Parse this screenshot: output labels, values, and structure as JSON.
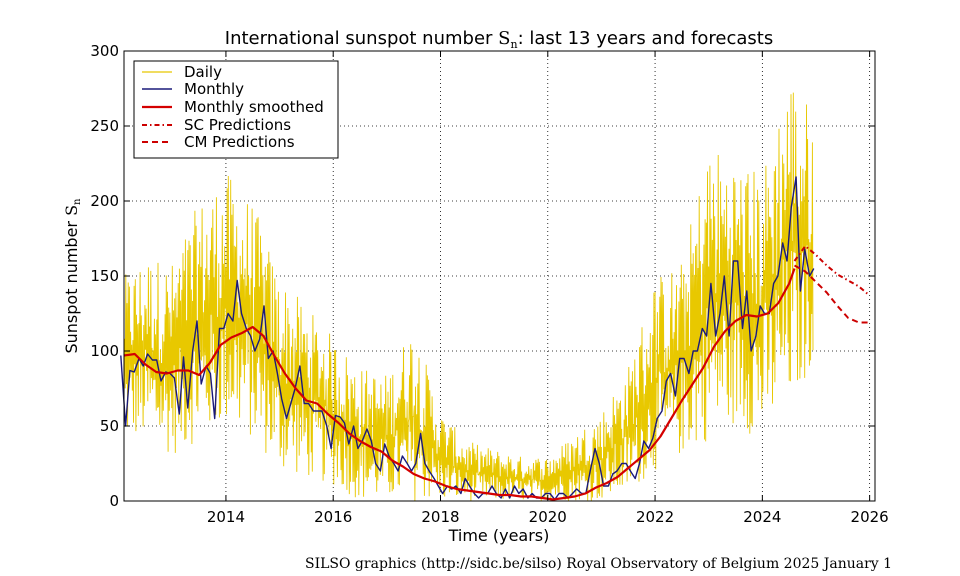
{
  "chart_data": {
    "type": "line",
    "title_parts": [
      "International sunspot number ",
      "S",
      "n",
      ": last 13 years and forecasts"
    ],
    "xlabel": "Time (years)",
    "ylabel_parts": [
      "Sunspot number ",
      "S",
      "n"
    ],
    "xlim": [
      2012.1,
      2026.1
    ],
    "ylim": [
      0,
      300
    ],
    "x_ticks": [
      2014,
      2016,
      2018,
      2020,
      2022,
      2024,
      2026
    ],
    "y_ticks": [
      0,
      50,
      100,
      150,
      200,
      250,
      300
    ],
    "grid": true,
    "legend_position": "top-left",
    "colors": {
      "daily": "#e8c800",
      "monthly": "#1a1a7a",
      "smoothed": "#d40000",
      "predictions": "#cc0000"
    },
    "series": [
      {
        "name": "Daily",
        "style": "thin-yellow",
        "band": [
          [
            2012.1,
            40,
            150
          ],
          [
            2012.5,
            40,
            165
          ],
          [
            2013.0,
            30,
            160
          ],
          [
            2013.5,
            40,
            200
          ],
          [
            2014.0,
            50,
            220
          ],
          [
            2014.5,
            40,
            200
          ],
          [
            2015.0,
            20,
            150
          ],
          [
            2015.5,
            15,
            130
          ],
          [
            2016.0,
            10,
            110
          ],
          [
            2016.5,
            0,
            90
          ],
          [
            2017.0,
            0,
            85
          ],
          [
            2017.5,
            0,
            120
          ],
          [
            2018.0,
            0,
            60
          ],
          [
            2018.5,
            0,
            40
          ],
          [
            2019.0,
            0,
            35
          ],
          [
            2019.5,
            0,
            30
          ],
          [
            2020.0,
            0,
            30
          ],
          [
            2020.5,
            0,
            45
          ],
          [
            2021.0,
            0,
            60
          ],
          [
            2021.5,
            5,
            90
          ],
          [
            2022.0,
            20,
            150
          ],
          [
            2022.5,
            30,
            160
          ],
          [
            2023.0,
            40,
            240
          ],
          [
            2023.5,
            50,
            230
          ],
          [
            2024.0,
            40,
            220
          ],
          [
            2024.5,
            60,
            290
          ],
          [
            2024.95,
            90,
            260
          ]
        ]
      },
      {
        "name": "Monthly",
        "style": "navy-line",
        "x": [
          2012.04,
          2012.13,
          2012.21,
          2012.29,
          2012.38,
          2012.46,
          2012.54,
          2012.63,
          2012.71,
          2012.79,
          2012.88,
          2012.96,
          2013.04,
          2013.13,
          2013.21,
          2013.29,
          2013.38,
          2013.46,
          2013.54,
          2013.63,
          2013.71,
          2013.79,
          2013.88,
          2013.96,
          2014.04,
          2014.13,
          2014.21,
          2014.29,
          2014.38,
          2014.46,
          2014.54,
          2014.63,
          2014.71,
          2014.79,
          2014.88,
          2014.96,
          2015.04,
          2015.13,
          2015.21,
          2015.29,
          2015.38,
          2015.46,
          2015.54,
          2015.63,
          2015.71,
          2015.79,
          2015.88,
          2015.96,
          2016.04,
          2016.13,
          2016.21,
          2016.29,
          2016.38,
          2016.46,
          2016.54,
          2016.63,
          2016.71,
          2016.79,
          2016.88,
          2016.96,
          2017.04,
          2017.13,
          2017.21,
          2017.29,
          2017.38,
          2017.46,
          2017.54,
          2017.63,
          2017.71,
          2017.79,
          2017.88,
          2017.96,
          2018.04,
          2018.13,
          2018.21,
          2018.29,
          2018.38,
          2018.46,
          2018.54,
          2018.63,
          2018.71,
          2018.79,
          2018.88,
          2018.96,
          2019.04,
          2019.13,
          2019.21,
          2019.29,
          2019.38,
          2019.46,
          2019.54,
          2019.63,
          2019.71,
          2019.79,
          2019.88,
          2019.96,
          2020.04,
          2020.13,
          2020.21,
          2020.29,
          2020.38,
          2020.46,
          2020.54,
          2020.63,
          2020.71,
          2020.79,
          2020.88,
          2020.96,
          2021.04,
          2021.13,
          2021.21,
          2021.29,
          2021.38,
          2021.46,
          2021.54,
          2021.63,
          2021.71,
          2021.79,
          2021.88,
          2021.96,
          2022.04,
          2022.13,
          2022.21,
          2022.29,
          2022.38,
          2022.46,
          2022.54,
          2022.63,
          2022.71,
          2022.79,
          2022.88,
          2022.96,
          2023.04,
          2023.13,
          2023.21,
          2023.29,
          2023.38,
          2023.46,
          2023.54,
          2023.63,
          2023.71,
          2023.79,
          2023.88,
          2023.96,
          2024.04,
          2024.13,
          2024.21,
          2024.29,
          2024.38,
          2024.46,
          2024.54,
          2024.63,
          2024.71,
          2024.79,
          2024.88,
          2024.96
        ],
        "y": [
          97,
          50,
          87,
          86,
          95,
          90,
          98,
          94,
          94,
          80,
          86,
          85,
          82,
          58,
          96,
          62,
          100,
          120,
          78,
          90,
          85,
          55,
          115,
          115,
          125,
          120,
          147,
          125,
          115,
          110,
          100,
          108,
          130,
          95,
          100,
          85,
          68,
          55,
          65,
          75,
          90,
          65,
          65,
          60,
          60,
          60,
          50,
          35,
          57,
          56,
          52,
          38,
          50,
          35,
          40,
          48,
          40,
          25,
          20,
          38,
          30,
          25,
          20,
          30,
          25,
          20,
          25,
          45,
          25,
          20,
          15,
          10,
          5,
          10,
          8,
          10,
          5,
          15,
          10,
          5,
          2,
          5,
          5,
          10,
          5,
          2,
          8,
          2,
          10,
          5,
          8,
          2,
          5,
          2,
          2,
          5,
          5,
          1,
          5,
          5,
          2,
          5,
          8,
          5,
          5,
          20,
          35,
          25,
          10,
          10,
          18,
          20,
          25,
          25,
          20,
          15,
          25,
          40,
          35,
          42,
          55,
          60,
          80,
          85,
          70,
          95,
          95,
          85,
          100,
          100,
          115,
          110,
          145,
          110,
          125,
          150,
          110,
          160,
          160,
          115,
          140,
          100,
          110,
          130,
          125,
          125,
          145,
          150,
          172,
          160,
          196,
          216,
          140,
          168,
          150,
          155
        ]
      },
      {
        "name": "Monthly smoothed",
        "style": "red-line",
        "x": [
          2012.1,
          2012.3,
          2012.5,
          2012.7,
          2012.9,
          2013.1,
          2013.3,
          2013.5,
          2013.7,
          2013.9,
          2014.1,
          2014.3,
          2014.5,
          2014.7,
          2014.9,
          2015.1,
          2015.3,
          2015.5,
          2015.7,
          2015.9,
          2016.1,
          2016.3,
          2016.5,
          2016.7,
          2016.9,
          2017.1,
          2017.3,
          2017.5,
          2017.7,
          2017.9,
          2018.1,
          2018.3,
          2018.5,
          2018.7,
          2018.9,
          2019.1,
          2019.3,
          2019.5,
          2019.7,
          2019.9,
          2020.1,
          2020.3,
          2020.5,
          2020.7,
          2020.9,
          2021.1,
          2021.3,
          2021.5,
          2021.7,
          2021.9,
          2022.1,
          2022.3,
          2022.5,
          2022.7,
          2022.9,
          2023.1,
          2023.3,
          2023.5,
          2023.7,
          2023.9,
          2024.1,
          2024.3,
          2024.5,
          2024.6
        ],
        "y": [
          97,
          98,
          91,
          86,
          85,
          87,
          87,
          84,
          92,
          104,
          109,
          112,
          116,
          110,
          97,
          85,
          75,
          67,
          65,
          58,
          52,
          45,
          40,
          36,
          33,
          27,
          23,
          18,
          15,
          13,
          10,
          8,
          7,
          6,
          5,
          4,
          4,
          3,
          3,
          2,
          1,
          2,
          3,
          5,
          9,
          12,
          16,
          22,
          28,
          34,
          43,
          55,
          67,
          78,
          89,
          103,
          113,
          120,
          124,
          123,
          125,
          132,
          145,
          155
        ]
      },
      {
        "name": "SC Predictions",
        "style": "dash-dot",
        "x": [
          2024.6,
          2024.8,
          2025.0,
          2025.2,
          2025.4,
          2025.6,
          2025.8,
          2026.0
        ],
        "y": [
          160,
          170,
          164,
          157,
          151,
          147,
          143,
          137
        ]
      },
      {
        "name": "CM Predictions",
        "style": "dashed",
        "x": [
          2024.6,
          2024.8,
          2025.0,
          2025.2,
          2025.4,
          2025.6,
          2025.8,
          2026.0
        ],
        "y": [
          157,
          153,
          146,
          139,
          130,
          122,
          119,
          119
        ]
      }
    ]
  },
  "credit": "SILSO graphics (http://sidc.be/silso)  Royal Observatory of Belgium  2025 January 1"
}
